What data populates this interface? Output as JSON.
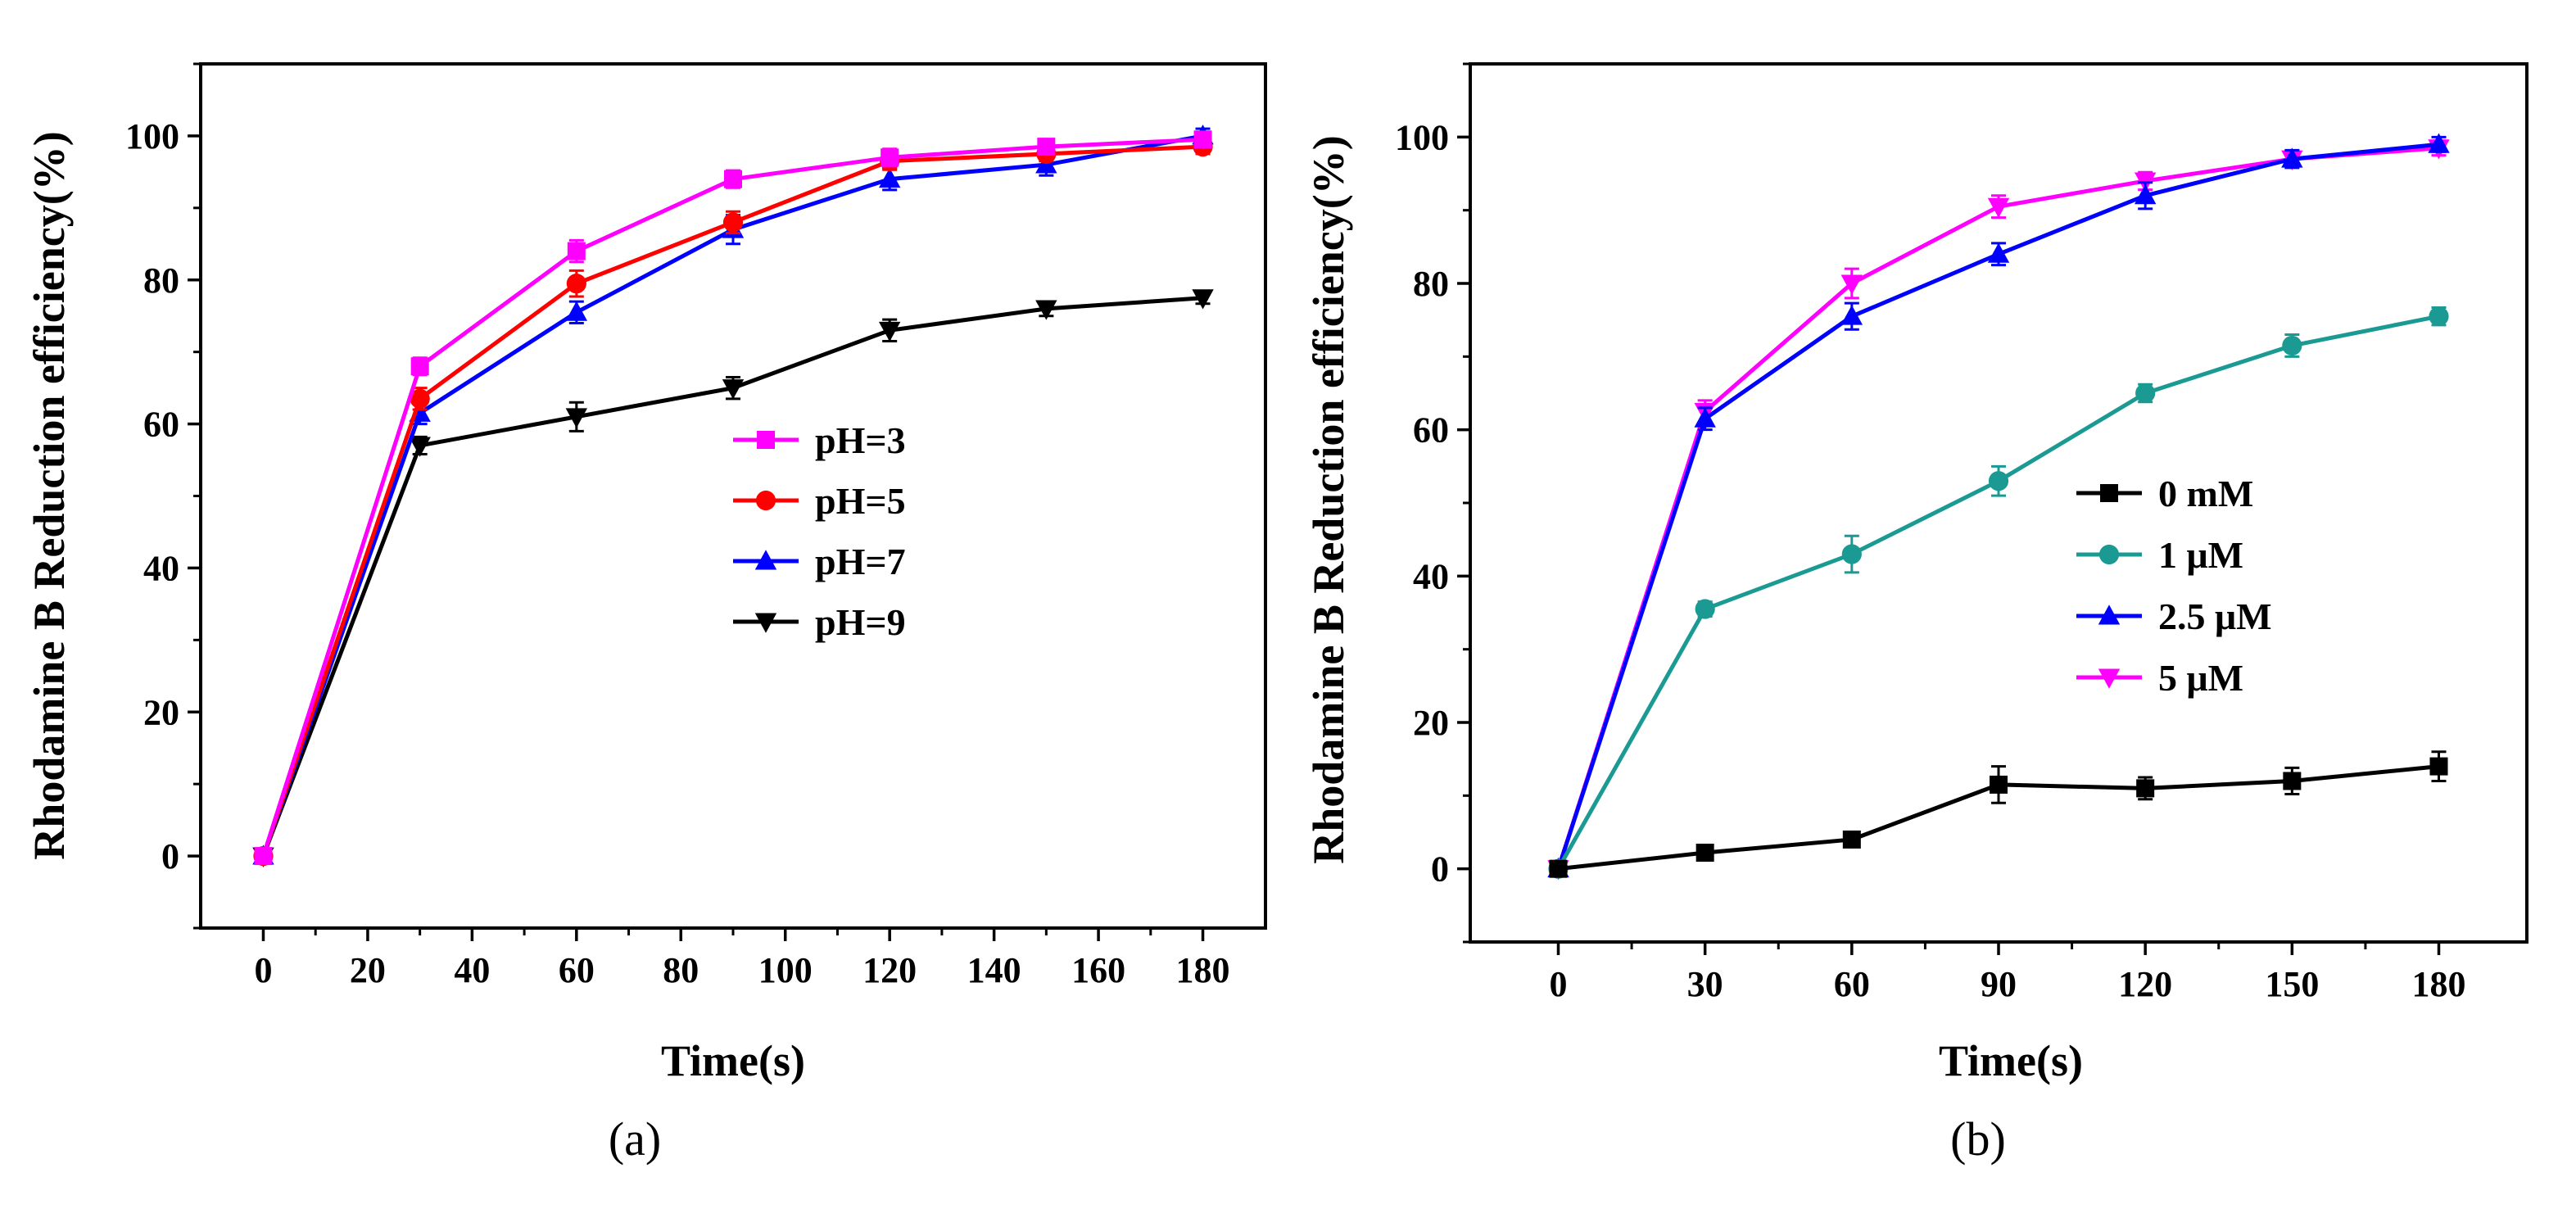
{
  "figure": {
    "panel_labels": [
      "(a)",
      "(b)"
    ]
  },
  "chart_data": [
    {
      "type": "line",
      "panel": "(a)",
      "xlabel": "Time(s)",
      "ylabel": "Rhodamine B Reduction efficiency(%)",
      "xlim": [
        -12,
        192
      ],
      "ylim": [
        -10,
        110
      ],
      "xticks": [
        0,
        20,
        40,
        60,
        80,
        100,
        120,
        140,
        160,
        180
      ],
      "yticks": [
        0,
        20,
        40,
        60,
        80,
        100
      ],
      "x": [
        0,
        30,
        60,
        90,
        120,
        150,
        180
      ],
      "legend_position": "center-right",
      "series": [
        {
          "name": "pH=3",
          "color": "#ff00ff",
          "marker": "square",
          "values": [
            0,
            68,
            84,
            94,
            97,
            98.5,
            99.5
          ],
          "errors": [
            0.8,
            1.2,
            1.5,
            1.2,
            1.2,
            1,
            0.8
          ]
        },
        {
          "name": "pH=5",
          "color": "#ff0000",
          "marker": "circle",
          "values": [
            0,
            63.5,
            79.5,
            88,
            96.5,
            97.5,
            98.5
          ],
          "errors": [
            0.8,
            1.5,
            1.8,
            1.5,
            1.2,
            1,
            1
          ]
        },
        {
          "name": "pH=7",
          "color": "#0000ff",
          "marker": "triangle-up",
          "values": [
            0,
            61.5,
            75.5,
            87,
            94,
            96,
            100
          ],
          "errors": [
            0.8,
            1.5,
            1.5,
            2,
            1.5,
            1.5,
            1
          ]
        },
        {
          "name": "pH=9",
          "color": "#000000",
          "marker": "triangle-down",
          "values": [
            0,
            57,
            61,
            65,
            73,
            76,
            77.5
          ],
          "errors": [
            0.8,
            1.2,
            2,
            1.5,
            1.5,
            1,
            0.8
          ]
        }
      ]
    },
    {
      "type": "line",
      "panel": "(b)",
      "xlabel": "Time(s)",
      "ylabel": "Rhodamine B Reduction efficiency(%)",
      "xlim": [
        -18,
        198
      ],
      "ylim": [
        -10,
        110
      ],
      "xticks": [
        0,
        30,
        60,
        90,
        120,
        150,
        180
      ],
      "yticks": [
        0,
        20,
        40,
        60,
        80,
        100
      ],
      "x": [
        0,
        30,
        60,
        90,
        120,
        150,
        180
      ],
      "legend_position": "center-right",
      "series": [
        {
          "name": "0 mM",
          "color": "#000000",
          "marker": "square",
          "values": [
            0,
            2.2,
            4,
            11.5,
            11,
            12,
            14
          ],
          "errors": [
            0.8,
            1,
            1,
            2.5,
            1.5,
            1.8,
            2
          ]
        },
        {
          "name": "1 μM",
          "color": "#1a9a93",
          "marker": "circle",
          "values": [
            0,
            35.5,
            43,
            53,
            65,
            71.5,
            75.5
          ],
          "errors": [
            0.8,
            1,
            2.5,
            2,
            1.2,
            1.5,
            1.2
          ]
        },
        {
          "name": "2.5 μM",
          "color": "#0000ff",
          "marker": "triangle-up",
          "values": [
            0,
            61.5,
            75.5,
            84,
            92,
            97,
            99
          ],
          "errors": [
            0.8,
            1.5,
            1.8,
            1.5,
            1.8,
            1.2,
            1
          ]
        },
        {
          "name": "5 μM",
          "color": "#ff00ff",
          "marker": "triangle-down",
          "values": [
            0,
            62.5,
            80,
            90.5,
            94,
            97,
            98.5
          ],
          "errors": [
            0.8,
            1.5,
            2,
            1.5,
            1.2,
            1,
            1
          ]
        }
      ]
    }
  ]
}
